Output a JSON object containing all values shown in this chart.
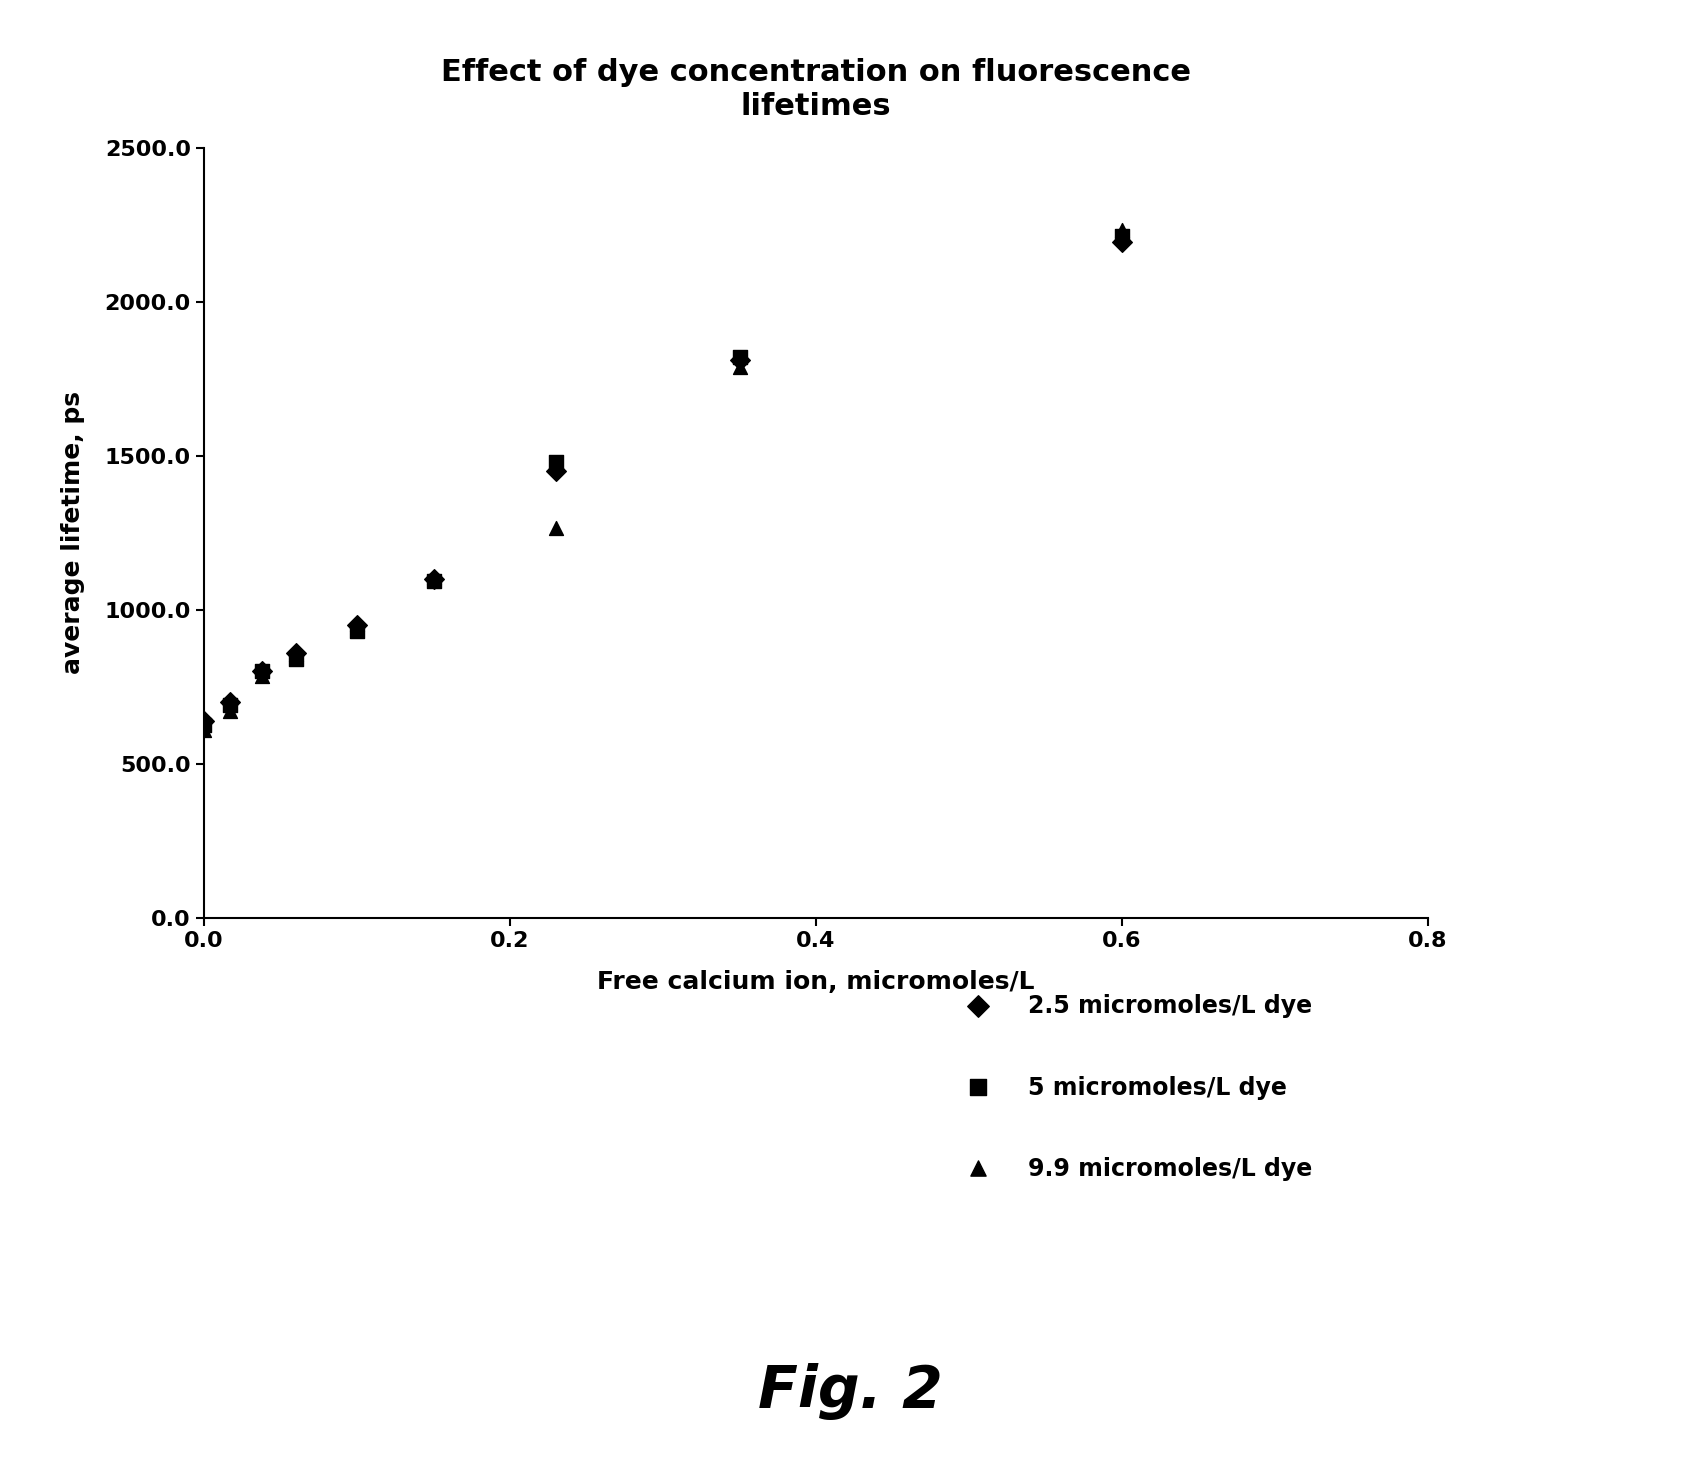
{
  "title": "Effect of dye concentration on fluorescence\nlifetimes",
  "xlabel": "Free calcium ion, micromoles/L",
  "ylabel": "average lifetime, ps",
  "xlim": [
    0,
    0.8
  ],
  "ylim": [
    0,
    2500.0
  ],
  "xticks": [
    0.0,
    0.2,
    0.4,
    0.6,
    0.8
  ],
  "yticks": [
    0.0,
    500.0,
    1000.0,
    1500.0,
    2000.0,
    2500.0
  ],
  "series": [
    {
      "label": "2.5 micromoles/L dye",
      "marker": "D",
      "x": [
        0.0,
        0.017,
        0.038,
        0.06,
        0.1,
        0.15,
        0.23,
        0.35,
        0.6
      ],
      "y": [
        640,
        700,
        800,
        860,
        950,
        1100,
        1450,
        1810,
        2195
      ]
    },
    {
      "label": "5 micromoles/L dye",
      "marker": "s",
      "x": [
        0.0,
        0.017,
        0.038,
        0.06,
        0.1,
        0.15,
        0.23,
        0.35,
        0.6
      ],
      "y": [
        625,
        690,
        800,
        840,
        930,
        1095,
        1480,
        1820,
        2215
      ]
    },
    {
      "label": "9.9 micromoles/L dye",
      "marker": "^",
      "x": [
        0.0,
        0.017,
        0.038,
        0.06,
        0.1,
        0.15,
        0.23,
        0.35,
        0.6
      ],
      "y": [
        610,
        670,
        785,
        855,
        955,
        1105,
        1265,
        1790,
        2235
      ]
    }
  ],
  "marker_color": "#000000",
  "marker_size": 100,
  "fig_caption": "Fig. 2",
  "background_color": "#ffffff",
  "title_fontsize": 22,
  "label_fontsize": 18,
  "tick_fontsize": 16,
  "legend_fontsize": 17
}
